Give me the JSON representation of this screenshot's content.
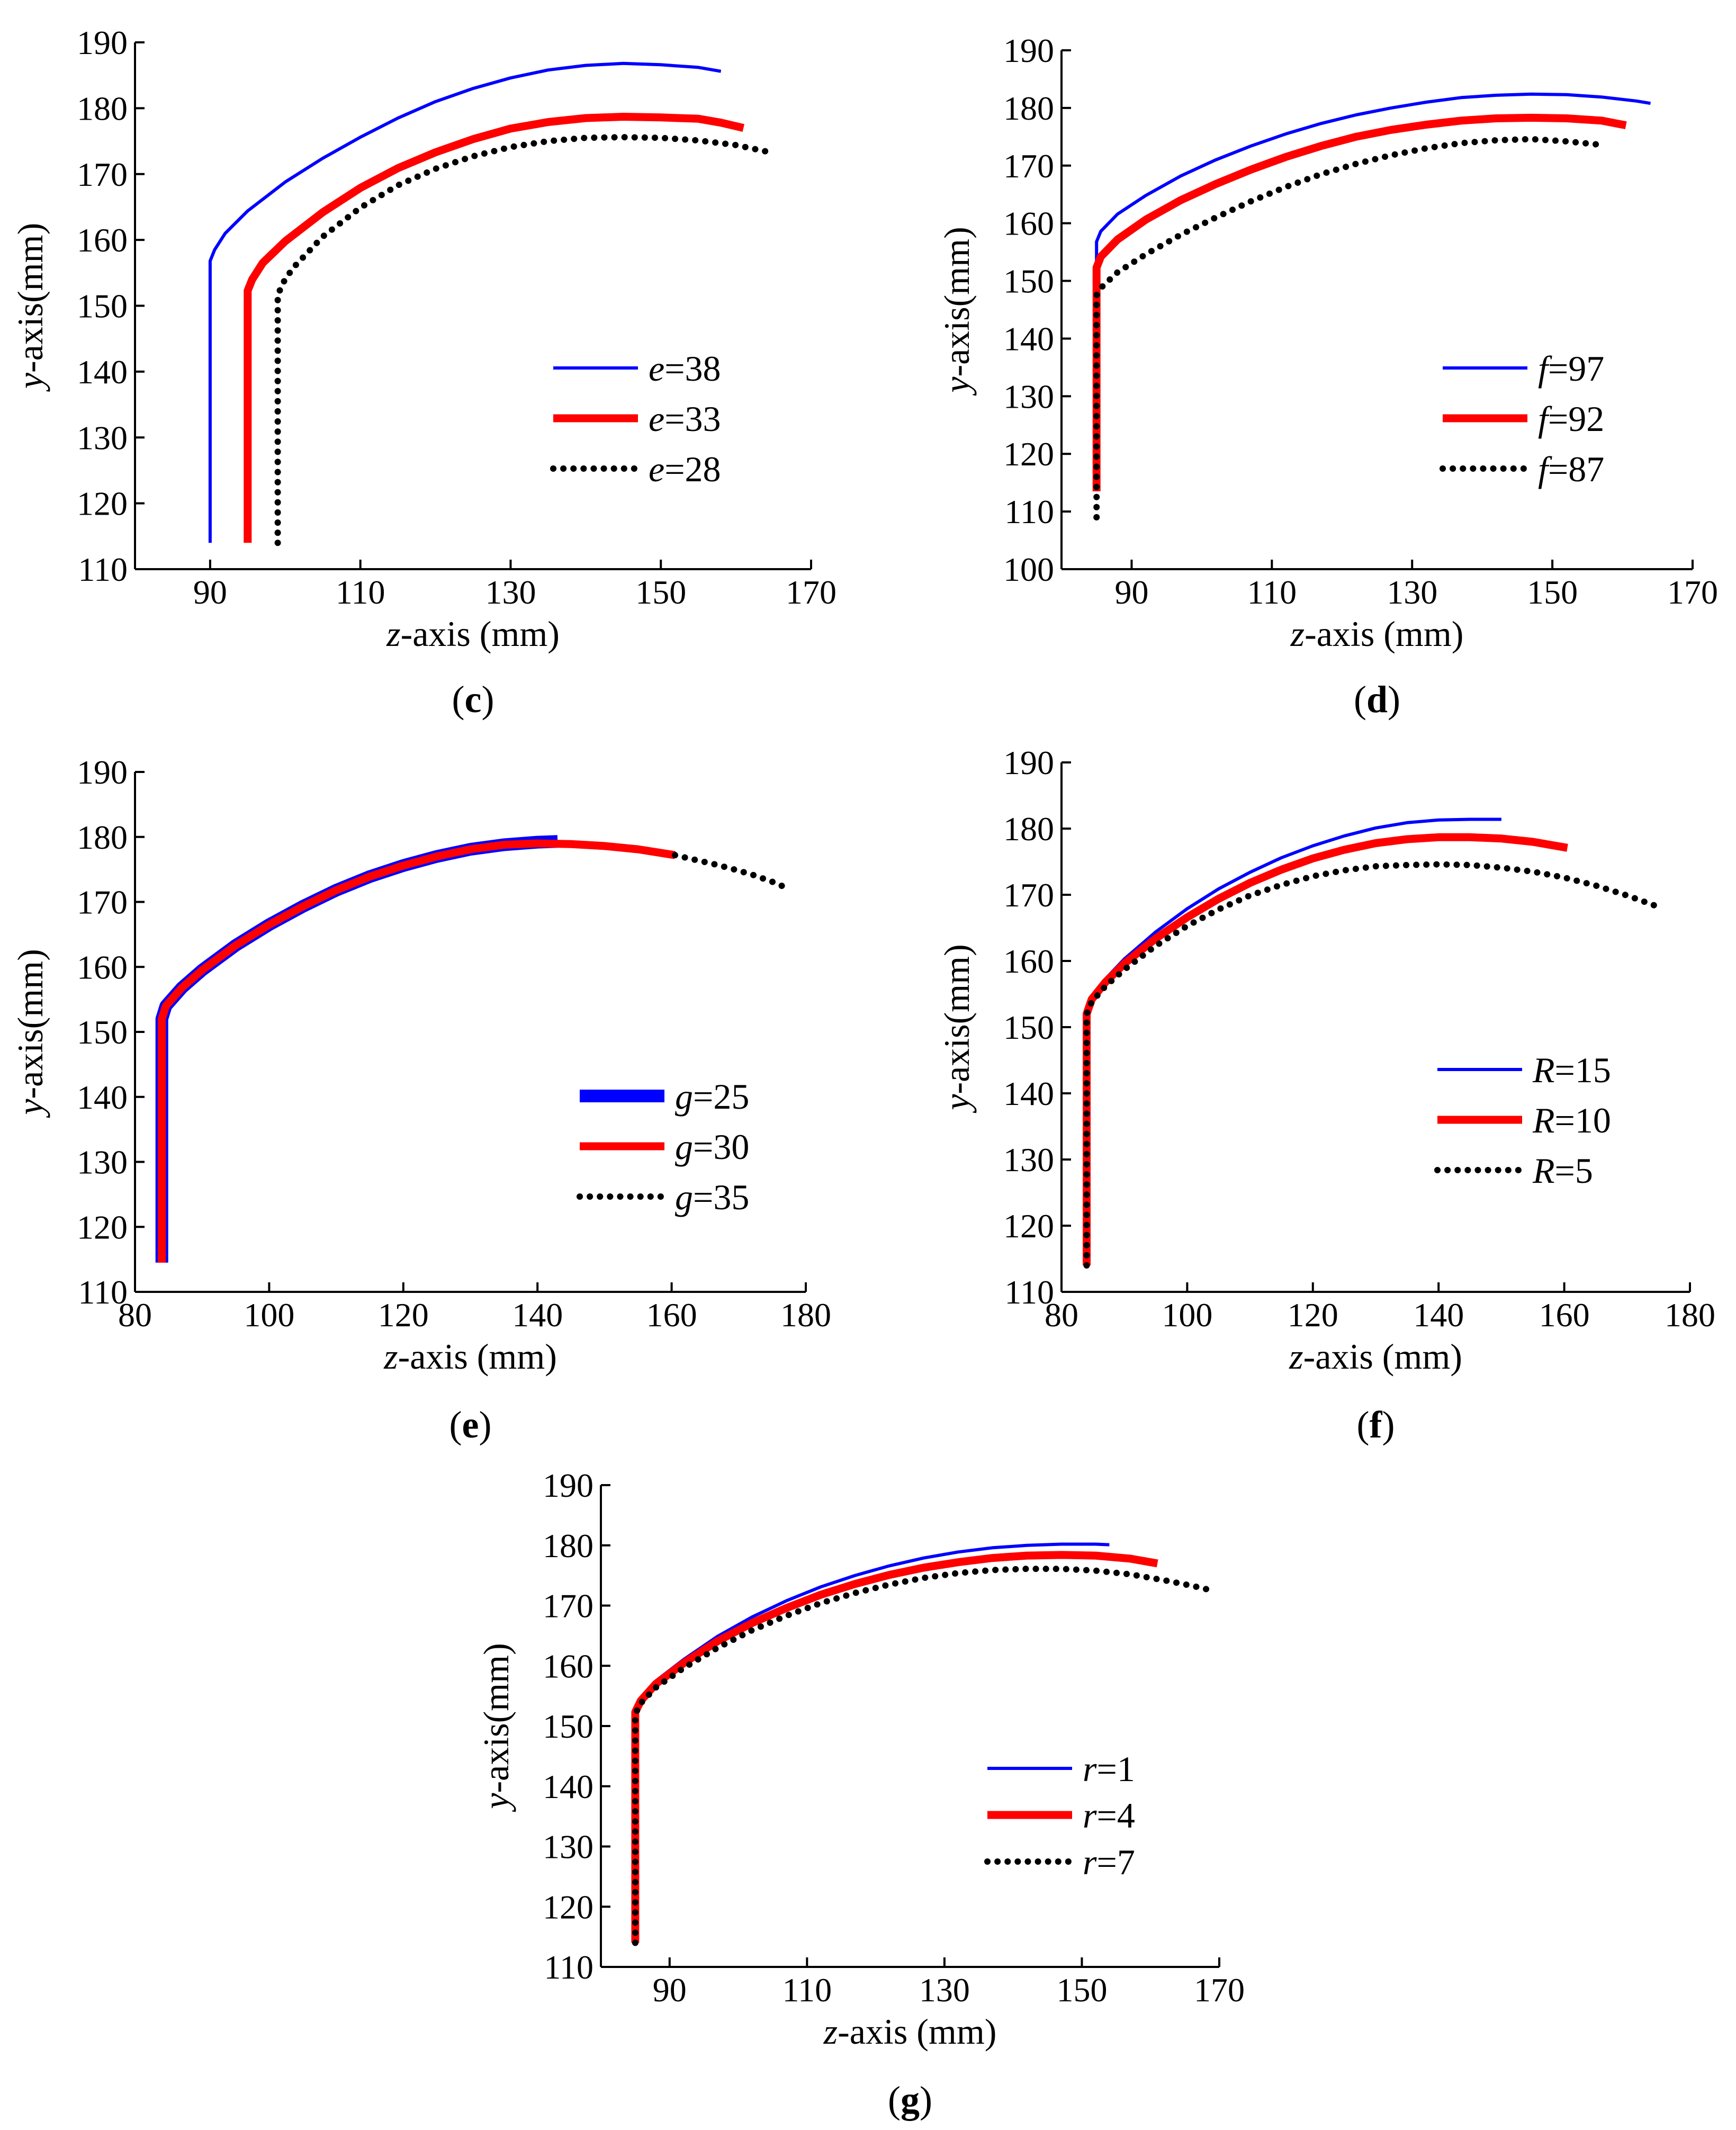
{
  "chart_data": [
    {
      "type": "line",
      "panel_label": "c",
      "xlabel": "z-axis (mm)",
      "ylabel": "y-axis(mm)",
      "xlim": [
        80,
        170
      ],
      "ylim": [
        110,
        190
      ],
      "xticks": [
        90,
        110,
        130,
        150,
        170
      ],
      "yticks": [
        110,
        120,
        130,
        140,
        150,
        160,
        170,
        180,
        190
      ],
      "legend": "center-right",
      "series": [
        {
          "name": "e=38",
          "param": "e",
          "value": "38",
          "color": "#0000ff",
          "style": "thin",
          "x": [
            90.0,
            90.0,
            90.6,
            92,
            95,
            100,
            105,
            110,
            115,
            120,
            125,
            130,
            135,
            140,
            145,
            150,
            155,
            158
          ],
          "y": [
            114,
            156.8,
            158.5,
            161.0,
            164.4,
            168.8,
            172.4,
            175.6,
            178.5,
            181.0,
            183.0,
            184.6,
            185.8,
            186.5,
            186.8,
            186.6,
            186.2,
            185.6
          ]
        },
        {
          "name": "e=33",
          "param": "e",
          "value": "33",
          "color": "#ff0000",
          "style": "thick",
          "x": [
            95.0,
            95.0,
            95.6,
            97,
            100,
            105,
            110,
            115,
            120,
            125,
            130,
            135,
            140,
            145,
            150,
            155,
            158,
            161
          ],
          "y": [
            114,
            152.3,
            154.0,
            156.5,
            159.8,
            164.2,
            167.9,
            170.9,
            173.3,
            175.3,
            176.9,
            177.9,
            178.5,
            178.7,
            178.6,
            178.4,
            177.8,
            177.0
          ]
        },
        {
          "name": "e=28",
          "param": "e",
          "value": "28",
          "color": "#000000",
          "style": "dotted",
          "x": [
            99.0,
            99.0,
            99.6,
            101,
            105,
            110,
            115,
            120,
            125,
            130,
            135,
            140,
            145,
            150,
            155,
            160,
            165
          ],
          "y": [
            114,
            151.5,
            153.3,
            155.7,
            160.5,
            164.9,
            168.3,
            170.8,
            172.7,
            174.1,
            175.0,
            175.5,
            175.6,
            175.5,
            175.1,
            174.4,
            173.2
          ]
        }
      ]
    },
    {
      "type": "line",
      "panel_label": "d",
      "xlabel": "z-axis (mm)",
      "ylabel": "y-axis(mm)",
      "xlim": [
        80,
        170
      ],
      "ylim": [
        100,
        190
      ],
      "xticks": [
        90,
        110,
        130,
        150,
        170
      ],
      "yticks": [
        100,
        110,
        120,
        130,
        140,
        150,
        160,
        170,
        180,
        190
      ],
      "legend": "center-right",
      "series": [
        {
          "name": "f=97",
          "param": "f",
          "value": "97",
          "color": "#0000ff",
          "style": "thin",
          "x": [
            85.0,
            85.0,
            85.6,
            88,
            92,
            97,
            102,
            107,
            112,
            117,
            122,
            127,
            132,
            137,
            142,
            147,
            152,
            157,
            162,
            164
          ],
          "y": [
            115,
            156.8,
            158.6,
            161.6,
            164.8,
            168.2,
            171.0,
            173.4,
            175.5,
            177.3,
            178.8,
            180.0,
            181.0,
            181.8,
            182.2,
            182.4,
            182.3,
            181.9,
            181.2,
            180.8
          ]
        },
        {
          "name": "f=92",
          "param": "f",
          "value": "92",
          "color": "#ff0000",
          "style": "thick",
          "x": [
            85.0,
            85.0,
            85.6,
            88,
            92,
            97,
            102,
            107,
            112,
            117,
            122,
            127,
            132,
            137,
            142,
            147,
            152,
            157,
            160.5
          ],
          "y": [
            113.5,
            152.3,
            154.2,
            157.2,
            160.6,
            164.0,
            166.8,
            169.3,
            171.5,
            173.4,
            175.0,
            176.2,
            177.1,
            177.8,
            178.2,
            178.3,
            178.2,
            177.8,
            177.0
          ]
        },
        {
          "name": "f=87",
          "param": "f",
          "value": "87",
          "color": "#000000",
          "style": "dotted",
          "x": [
            85.0,
            85.0,
            85.8,
            88,
            92,
            97,
            102,
            107,
            112,
            117,
            122,
            127,
            132,
            137,
            142,
            147,
            152,
            157
          ],
          "y": [
            109,
            147.5,
            149.0,
            151.5,
            154.6,
            158.0,
            161.0,
            163.8,
            166.3,
            168.5,
            170.3,
            171.8,
            173.0,
            173.9,
            174.4,
            174.6,
            174.2,
            173.6
          ]
        }
      ]
    },
    {
      "type": "line",
      "panel_label": "e",
      "xlabel": "z-axis (mm)",
      "ylabel": "y-axis(mm)",
      "xlim": [
        80,
        180
      ],
      "ylim": [
        110,
        190
      ],
      "xticks": [
        80,
        100,
        120,
        140,
        160,
        180
      ],
      "yticks": [
        110,
        120,
        130,
        140,
        150,
        160,
        170,
        180,
        190
      ],
      "legend": "center-right",
      "series": [
        {
          "name": "g=25",
          "param": "g",
          "value": "25",
          "color": "#0000ff",
          "style": "thickest",
          "x": [
            84.0,
            84.0,
            84.6,
            87,
            90,
            95,
            100,
            105,
            110,
            115,
            120,
            125,
            130,
            135,
            140,
            143
          ],
          "y": [
            114.5,
            152.0,
            154.0,
            156.8,
            159.5,
            163.3,
            166.5,
            169.3,
            171.8,
            173.9,
            175.6,
            177.0,
            178.1,
            178.8,
            179.2,
            179.3
          ]
        },
        {
          "name": "g=30",
          "param": "g",
          "value": "30",
          "color": "#ff0000",
          "style": "thick",
          "x": [
            84.0,
            84.0,
            84.6,
            87,
            90,
            95,
            100,
            105,
            110,
            115,
            120,
            125,
            130,
            135,
            140,
            145,
            150,
            155,
            160.5
          ],
          "y": [
            114.5,
            152.0,
            154.0,
            156.8,
            159.5,
            163.3,
            166.5,
            169.3,
            171.8,
            173.9,
            175.6,
            177.0,
            178.1,
            178.8,
            179.0,
            178.9,
            178.6,
            178.1,
            177.2
          ]
        },
        {
          "name": "g=35",
          "param": "g",
          "value": "35",
          "color": "#000000",
          "style": "dotted",
          "x": [
            160.5,
            163,
            166,
            169,
            172,
            175,
            177.5
          ],
          "y": [
            177.2,
            176.6,
            175.9,
            175.1,
            174.2,
            173.1,
            172.0
          ]
        }
      ]
    },
    {
      "type": "line",
      "panel_label": "f",
      "xlabel": "z-axis (mm)",
      "ylabel": "y-axis(mm)",
      "xlim": [
        80,
        180
      ],
      "ylim": [
        110,
        190
      ],
      "xticks": [
        80,
        100,
        120,
        140,
        160,
        180
      ],
      "yticks": [
        110,
        120,
        130,
        140,
        150,
        160,
        170,
        180,
        190
      ],
      "legend": "center-right",
      "series": [
        {
          "name": "R=15",
          "param": "R",
          "value": "15",
          "color": "#0000ff",
          "style": "thin",
          "x": [
            84.0,
            84.0,
            84.8,
            87,
            90,
            95,
            100,
            105,
            110,
            115,
            120,
            125,
            130,
            135,
            140,
            145,
            150
          ],
          "y": [
            114,
            152.0,
            154.5,
            157.3,
            160.3,
            164.4,
            167.9,
            170.9,
            173.4,
            175.6,
            177.4,
            178.9,
            180.1,
            180.9,
            181.3,
            181.4,
            181.4
          ]
        },
        {
          "name": "R=10",
          "param": "R",
          "value": "10",
          "color": "#ff0000",
          "style": "thick",
          "x": [
            84.0,
            84.0,
            84.8,
            87,
            90,
            95,
            100,
            105,
            110,
            115,
            120,
            125,
            130,
            135,
            140,
            145,
            150,
            155,
            160.5
          ],
          "y": [
            114,
            152.0,
            154.2,
            156.8,
            159.6,
            163.4,
            166.6,
            169.4,
            171.8,
            173.8,
            175.5,
            176.8,
            177.8,
            178.4,
            178.7,
            178.7,
            178.5,
            178.0,
            177.1
          ]
        },
        {
          "name": "R=5",
          "param": "R",
          "value": "5",
          "color": "#000000",
          "style": "dotted",
          "x": [
            84.0,
            84.0,
            84.8,
            87,
            90,
            95,
            100,
            105,
            110,
            115,
            120,
            125,
            130,
            135,
            140,
            145,
            150,
            155,
            160,
            165,
            170,
            175.5
          ],
          "y": [
            114,
            152.0,
            153.8,
            156.2,
            158.7,
            162.3,
            165.3,
            167.8,
            169.9,
            171.5,
            172.8,
            173.7,
            174.3,
            174.5,
            174.6,
            174.5,
            174.1,
            173.5,
            172.6,
            171.4,
            169.9,
            168.0
          ]
        }
      ]
    },
    {
      "type": "line",
      "panel_label": "g",
      "xlabel": "z-axis (mm)",
      "ylabel": "y-axis(mm)",
      "xlim": [
        80,
        170
      ],
      "ylim": [
        110,
        190
      ],
      "xticks": [
        90,
        110,
        130,
        150,
        170
      ],
      "yticks": [
        110,
        120,
        130,
        140,
        150,
        160,
        170,
        180,
        190
      ],
      "legend": "center-right",
      "series": [
        {
          "name": "r=1",
          "param": "r",
          "value": "1",
          "color": "#0000ff",
          "style": "thin",
          "x": [
            85.0,
            85.0,
            85.8,
            88,
            92,
            97,
            102,
            107,
            112,
            117,
            122,
            127,
            132,
            137,
            142,
            147,
            152,
            154
          ],
          "y": [
            114,
            152.5,
            154.6,
            157.5,
            161.0,
            164.9,
            168.1,
            170.8,
            173.1,
            175.0,
            176.6,
            177.9,
            178.9,
            179.6,
            180.0,
            180.2,
            180.2,
            180.1
          ]
        },
        {
          "name": "r=4",
          "param": "r",
          "value": "4",
          "color": "#ff0000",
          "style": "thick",
          "x": [
            85.0,
            85.0,
            85.8,
            88,
            92,
            97,
            102,
            107,
            112,
            117,
            122,
            127,
            132,
            137,
            142,
            147,
            152,
            157,
            161
          ],
          "y": [
            114,
            152.3,
            154.2,
            157.0,
            160.4,
            164.1,
            167.1,
            169.6,
            171.8,
            173.6,
            175.1,
            176.3,
            177.2,
            177.9,
            178.3,
            178.4,
            178.3,
            177.8,
            177.0
          ]
        },
        {
          "name": "r=7",
          "param": "r",
          "value": "7",
          "color": "#000000",
          "style": "dotted",
          "x": [
            85.0,
            85.0,
            85.8,
            88,
            92,
            97,
            102,
            107,
            112,
            117,
            122,
            127,
            132,
            137,
            142,
            147,
            152,
            157,
            162,
            166,
            169
          ],
          "y": [
            114,
            152.0,
            153.8,
            156.4,
            159.6,
            163.0,
            165.9,
            168.3,
            170.4,
            172.1,
            173.5,
            174.6,
            175.4,
            175.9,
            176.1,
            176.1,
            175.8,
            175.2,
            174.2,
            173.3,
            172.5
          ]
        }
      ]
    }
  ]
}
